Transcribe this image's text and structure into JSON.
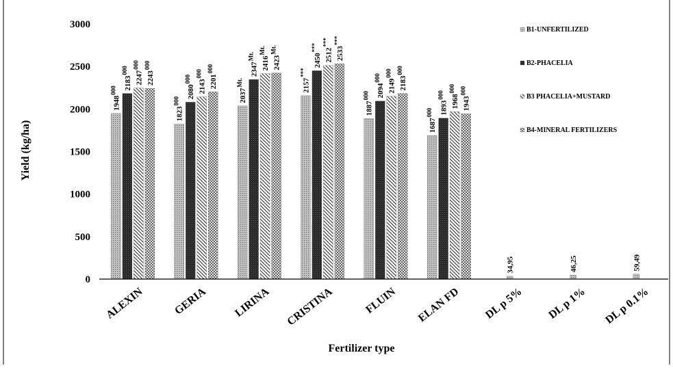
{
  "chart_data": {
    "type": "bar",
    "xlabel": "Fertilizer type",
    "ylabel": "Yield (kg/ha)",
    "ylim": [
      0,
      3000
    ],
    "yticks": [
      "0",
      "500",
      "1000",
      "1500",
      "2000",
      "2500",
      "3000"
    ],
    "categories": [
      "ALEXIN",
      "GERIA",
      "LIRINA",
      "CRISTINA",
      "FLUIN",
      "ELAN FD",
      "DL p 5%",
      "DL p 1%",
      "DL p 0.1%"
    ],
    "legend_position": "top-right",
    "series": [
      {
        "name": "B1-UNFERTILIZED",
        "pattern": "dots",
        "values": [
          1948,
          1823,
          2037,
          2157,
          1887,
          1687,
          34.95,
          46.25,
          59.49
        ],
        "labels": [
          "1948",
          "1823",
          "2037",
          "2157",
          "1887",
          "1687",
          "34,95",
          "46,25",
          "59,49"
        ],
        "marks": [
          "000",
          "000",
          "Mt.",
          "***",
          "000",
          "000",
          "",
          "",
          ""
        ]
      },
      {
        "name": "B2-PHACELIA",
        "pattern": "dark",
        "values": [
          2183,
          2080,
          2347,
          2450,
          2094,
          1893,
          null,
          null,
          null
        ],
        "labels": [
          "2183",
          "2080",
          "2347",
          "2450",
          "2094",
          "1893",
          "",
          "",
          ""
        ],
        "marks": [
          "000",
          "000",
          "Mt.",
          "***",
          "000",
          "000",
          "",
          "",
          ""
        ]
      },
      {
        "name": "B3 PHACELIA+MUSTARD",
        "pattern": "diag",
        "values": [
          2247,
          2143,
          2416,
          2512,
          2149,
          1968,
          null,
          null,
          null
        ],
        "labels": [
          "2247",
          "2143",
          "2416",
          "2512",
          "2149",
          "1968",
          "",
          "",
          ""
        ],
        "marks": [
          "000",
          "000",
          "Mt.",
          "***",
          "000",
          "000",
          "",
          "",
          ""
        ]
      },
      {
        "name": "B4-MINERAL FERTILIZERS",
        "pattern": "check",
        "values": [
          2243,
          2201,
          2423,
          2533,
          2183,
          1943,
          null,
          null,
          null
        ],
        "labels": [
          "2243",
          "2201",
          "2423",
          "2533",
          "2183",
          "1943",
          "",
          "",
          ""
        ],
        "marks": [
          "000",
          "000",
          "Mt.",
          "***",
          "000",
          "000",
          "",
          "",
          ""
        ]
      }
    ]
  }
}
